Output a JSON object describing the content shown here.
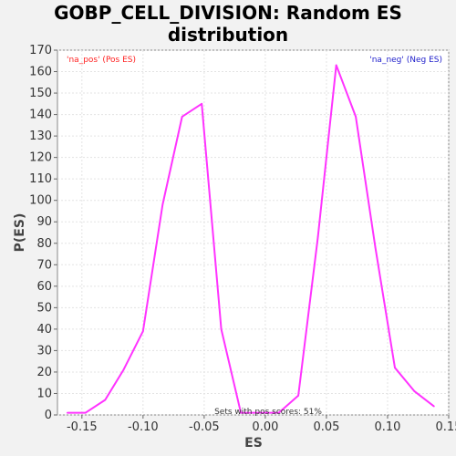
{
  "chart_data": {
    "type": "line",
    "title_lines": [
      "GOBP_CELL_DIVISION: Random ES",
      "distribution"
    ],
    "xlabel": "ES",
    "ylabel": "P(ES)",
    "xlim": [
      -0.17,
      0.15
    ],
    "ylim": [
      0,
      170
    ],
    "x_ticks": [
      -0.15,
      -0.1,
      -0.05,
      0.0,
      0.05,
      0.1,
      0.15
    ],
    "x_tick_labels": [
      "-0.15",
      "-0.10",
      "-0.05",
      "0.00",
      "0.05",
      "0.10",
      "0.15"
    ],
    "y_ticks": [
      0,
      10,
      20,
      30,
      40,
      50,
      60,
      70,
      80,
      90,
      100,
      110,
      120,
      130,
      140,
      150,
      160,
      170
    ],
    "grid": true,
    "series": [
      {
        "color": "#ff33ff",
        "x": [
          -0.162,
          -0.147,
          -0.131,
          -0.116,
          -0.1,
          -0.084,
          -0.068,
          -0.052,
          -0.036,
          -0.02,
          -0.005,
          0.011,
          0.027,
          0.043,
          0.058,
          0.074,
          0.09,
          0.106,
          0.122,
          0.138
        ],
        "y": [
          1,
          1,
          7,
          21,
          39,
          98,
          139,
          145,
          40,
          1,
          1,
          1,
          9,
          83,
          163,
          139,
          78,
          22,
          11,
          4
        ]
      }
    ],
    "legend_left": {
      "text": "'na_pos' (Pos ES)",
      "color": "#ff2222"
    },
    "legend_right": {
      "text": "'na_neg' (Neg ES)",
      "color": "#2222cc"
    },
    "annotation": "Sets with pos scores: 51%"
  }
}
